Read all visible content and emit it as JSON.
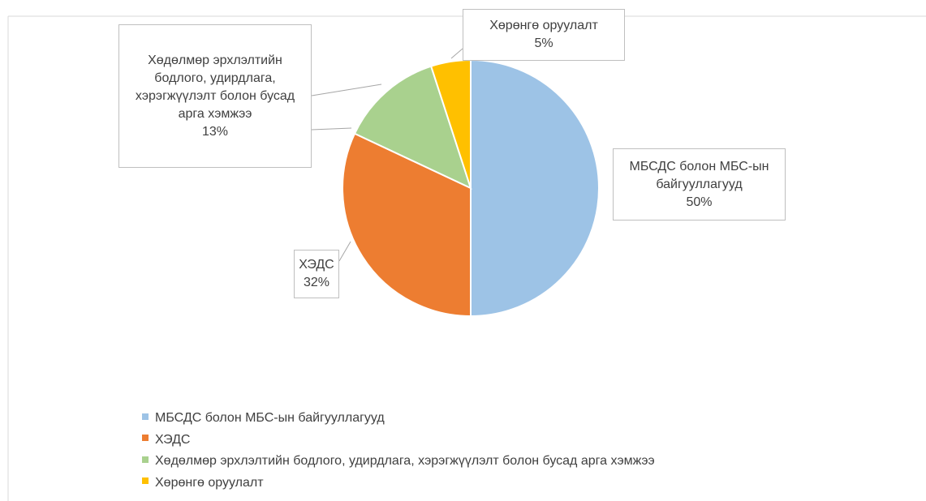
{
  "chart_data": {
    "type": "pie",
    "categories": [
      "МБСДС болон МБС-ын байгууллагууд",
      "ХЭДС",
      "Хөдөлмөр эрхлэлтийн бодлого, удирдлага, хэрэгжүүлэлт болон бусад арга хэмжээ",
      "Хөрөнгө оруулалт"
    ],
    "values": [
      50,
      32,
      13,
      5
    ],
    "value_labels": [
      "50%",
      "32%",
      "13%",
      "5%"
    ],
    "colors": [
      "#9dc3e6",
      "#ed7d31",
      "#a9d18e",
      "#ffc000"
    ],
    "legend": "bottom"
  }
}
